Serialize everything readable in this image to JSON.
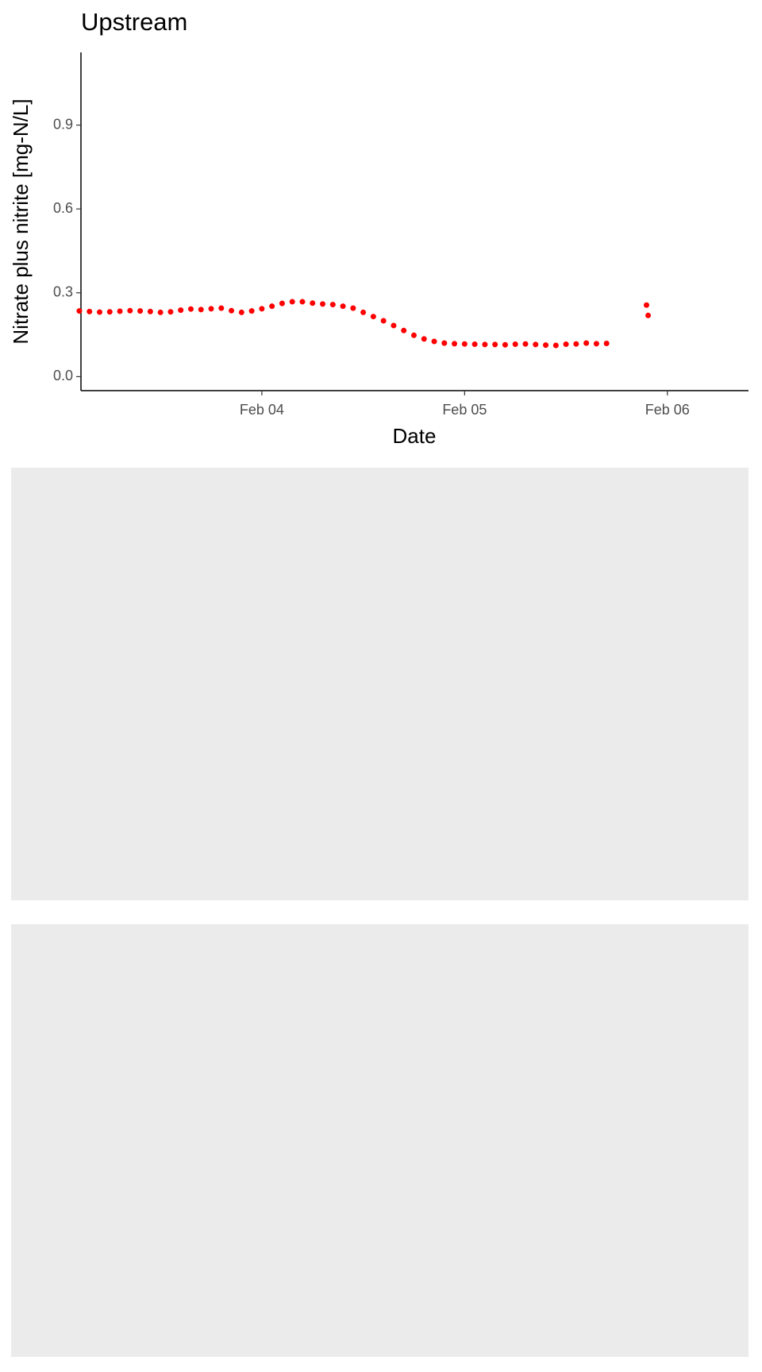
{
  "chart_data": {
    "type": "scatter",
    "title": "Upstream",
    "x_label": "Date",
    "y_label": "Nitrate plus nitrite [mg-N/L]",
    "x": [
      3.1,
      3.15,
      3.2,
      3.25,
      3.3,
      3.35,
      3.4,
      3.45,
      3.5,
      3.55,
      3.6,
      3.65,
      3.7,
      3.75,
      3.8,
      3.85,
      3.9,
      3.95,
      4.0,
      4.05,
      4.1,
      4.15,
      4.2,
      4.25,
      4.3,
      4.35,
      4.4,
      4.45,
      4.5,
      4.55,
      4.6,
      4.65,
      4.7,
      4.75,
      4.8,
      4.85,
      4.9,
      4.95,
      5.0,
      5.05,
      5.1,
      5.15,
      5.2,
      5.25,
      5.3,
      5.35,
      5.4,
      5.45,
      5.5,
      5.55,
      5.6,
      5.65,
      5.7,
      5.897,
      5.905
    ],
    "values": [
      0.235,
      0.233,
      0.231,
      0.232,
      0.234,
      0.236,
      0.235,
      0.233,
      0.23,
      0.232,
      0.238,
      0.242,
      0.24,
      0.243,
      0.245,
      0.236,
      0.23,
      0.235,
      0.243,
      0.252,
      0.262,
      0.268,
      0.268,
      0.263,
      0.26,
      0.258,
      0.252,
      0.245,
      0.23,
      0.215,
      0.2,
      0.183,
      0.165,
      0.148,
      0.135,
      0.126,
      0.12,
      0.118,
      0.117,
      0.116,
      0.115,
      0.115,
      0.114,
      0.116,
      0.117,
      0.115,
      0.113,
      0.112,
      0.116,
      0.117,
      0.12,
      0.118,
      0.119,
      0.256,
      0.219
    ],
    "color": "#ff0000",
    "xlim": [
      3.108,
      6.4
    ],
    "xticks": [
      {
        "value": 4,
        "label": "Feb 04"
      },
      {
        "value": 5,
        "label": "Feb 05"
      },
      {
        "value": 6,
        "label": "Feb 06"
      }
    ],
    "ylim": [
      -0.05,
      1.16
    ],
    "yticks": [
      {
        "value": 0,
        "label": "0.0"
      },
      0.3,
      0.6,
      0.9
    ],
    "grid": false
  }
}
